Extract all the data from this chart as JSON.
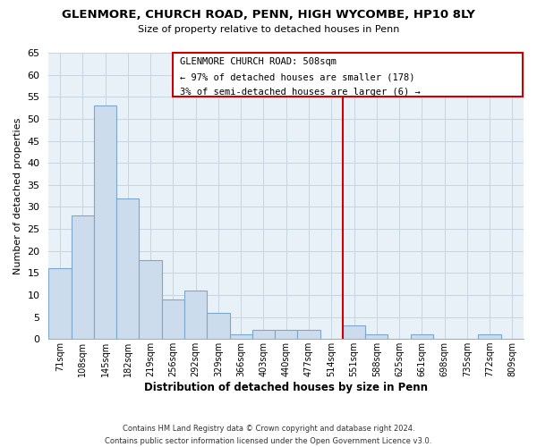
{
  "title": "GLENMORE, CHURCH ROAD, PENN, HIGH WYCOMBE, HP10 8LY",
  "subtitle": "Size of property relative to detached houses in Penn",
  "xlabel": "Distribution of detached houses by size in Penn",
  "ylabel": "Number of detached properties",
  "bin_labels": [
    "71sqm",
    "108sqm",
    "145sqm",
    "182sqm",
    "219sqm",
    "256sqm",
    "292sqm",
    "329sqm",
    "366sqm",
    "403sqm",
    "440sqm",
    "477sqm",
    "514sqm",
    "551sqm",
    "588sqm",
    "625sqm",
    "661sqm",
    "698sqm",
    "735sqm",
    "772sqm",
    "809sqm"
  ],
  "bar_values": [
    16,
    28,
    53,
    32,
    18,
    9,
    11,
    6,
    1,
    2,
    2,
    2,
    0,
    3,
    1,
    0,
    1,
    0,
    0,
    1,
    0
  ],
  "bar_color": "#ccdcec",
  "bar_edge_color": "#7aa8cc",
  "annotation_title": "GLENMORE CHURCH ROAD: 508sqm",
  "annotation_line1": "← 97% of detached houses are smaller (178)",
  "annotation_line2": "3% of semi-detached houses are larger (6) →",
  "ylim": [
    0,
    65
  ],
  "yticks": [
    0,
    5,
    10,
    15,
    20,
    25,
    30,
    35,
    40,
    45,
    50,
    55,
    60,
    65
  ],
  "footer_line1": "Contains HM Land Registry data © Crown copyright and database right 2024.",
  "footer_line2": "Contains public sector information licensed under the Open Government Licence v3.0.",
  "background_color": "#ffffff",
  "grid_color": "#c8d4e0",
  "ref_line_color": "#cc0000",
  "ann_box_color": "#cc0000"
}
